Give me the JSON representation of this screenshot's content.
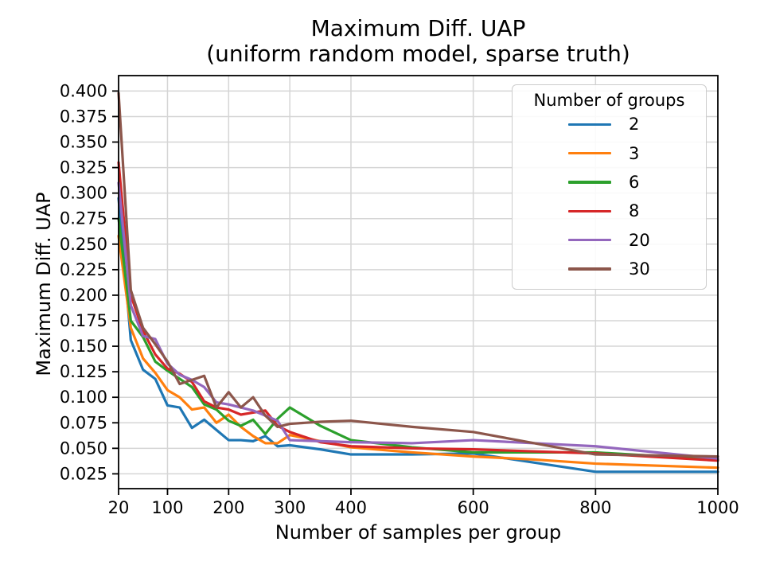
{
  "chart": {
    "title_line1": "Maximum Diff. UAP",
    "title_line2": "(uniform random model, sparse truth)",
    "xlabel": "Number of samples per group",
    "ylabel": "Maximum Diff. UAP",
    "legend": {
      "title": "Number of groups"
    }
  },
  "chart_data": {
    "type": "line",
    "title": "Maximum Diff. UAP (uniform random model, sparse truth)",
    "xlabel": "Number of samples per group",
    "ylabel": "Maximum Diff. UAP",
    "xlim": [
      20,
      1000
    ],
    "ylim": [
      0.0105,
      0.4151
    ],
    "grid": true,
    "grid_color": "#d5d5d5",
    "legend_position": "upper right",
    "legend_title": "Number of groups",
    "xticks": {
      "values": [
        20,
        100,
        200,
        300,
        400,
        600,
        800,
        1000
      ],
      "labels": [
        "20",
        "100",
        "200",
        "300",
        "400",
        "600",
        "800",
        "1000"
      ]
    },
    "yticks": {
      "values": [
        0.025,
        0.05,
        0.075,
        0.1,
        0.125,
        0.15,
        0.175,
        0.2,
        0.225,
        0.25,
        0.275,
        0.3,
        0.325,
        0.35,
        0.375,
        0.4
      ],
      "labels": [
        "0.025",
        "0.050",
        "0.075",
        "0.100",
        "0.125",
        "0.150",
        "0.175",
        "0.200",
        "0.225",
        "0.250",
        "0.275",
        "0.300",
        "0.325",
        "0.350",
        "0.375",
        "0.400"
      ]
    },
    "x": [
      20,
      40,
      60,
      80,
      100,
      120,
      140,
      160,
      180,
      200,
      220,
      240,
      260,
      280,
      300,
      350,
      400,
      500,
      600,
      700,
      800,
      1000
    ],
    "series": [
      {
        "name": "2",
        "color": "#1f77b4",
        "values": [
          0.295,
          0.156,
          0.127,
          0.118,
          0.092,
          0.09,
          0.07,
          0.078,
          0.068,
          0.058,
          0.058,
          0.057,
          0.062,
          0.052,
          0.053,
          0.049,
          0.044,
          0.044,
          0.045,
          0.036,
          0.027,
          0.027
        ]
      },
      {
        "name": "3",
        "color": "#ff7f0e",
        "values": [
          0.258,
          0.168,
          0.138,
          0.124,
          0.107,
          0.1,
          0.088,
          0.09,
          0.075,
          0.083,
          0.071,
          0.062,
          0.055,
          0.055,
          0.063,
          0.057,
          0.051,
          0.046,
          0.042,
          0.039,
          0.035,
          0.031
        ]
      },
      {
        "name": "6",
        "color": "#2ca02c",
        "values": [
          0.275,
          0.175,
          0.159,
          0.135,
          0.126,
          0.118,
          0.11,
          0.093,
          0.088,
          0.077,
          0.072,
          0.078,
          0.064,
          0.079,
          0.09,
          0.072,
          0.058,
          0.051,
          0.046,
          0.046,
          0.046,
          0.039
        ]
      },
      {
        "name": "8",
        "color": "#d62728",
        "values": [
          0.33,
          0.2,
          0.165,
          0.142,
          0.128,
          0.123,
          0.115,
          0.096,
          0.09,
          0.088,
          0.083,
          0.085,
          0.087,
          0.072,
          0.066,
          0.056,
          0.052,
          0.05,
          0.049,
          0.047,
          0.045,
          0.038
        ]
      },
      {
        "name": "20",
        "color": "#9467bd",
        "values": [
          0.31,
          0.19,
          0.16,
          0.157,
          0.133,
          0.122,
          0.117,
          0.11,
          0.095,
          0.093,
          0.09,
          0.087,
          0.082,
          0.077,
          0.058,
          0.057,
          0.056,
          0.055,
          0.058,
          0.055,
          0.052,
          0.04
        ]
      },
      {
        "name": "30",
        "color": "#8c564b",
        "values": [
          0.398,
          0.205,
          0.168,
          0.152,
          0.135,
          0.113,
          0.117,
          0.121,
          0.09,
          0.105,
          0.09,
          0.1,
          0.082,
          0.071,
          0.074,
          0.076,
          0.077,
          0.071,
          0.066,
          0.055,
          0.044,
          0.042
        ]
      }
    ]
  }
}
